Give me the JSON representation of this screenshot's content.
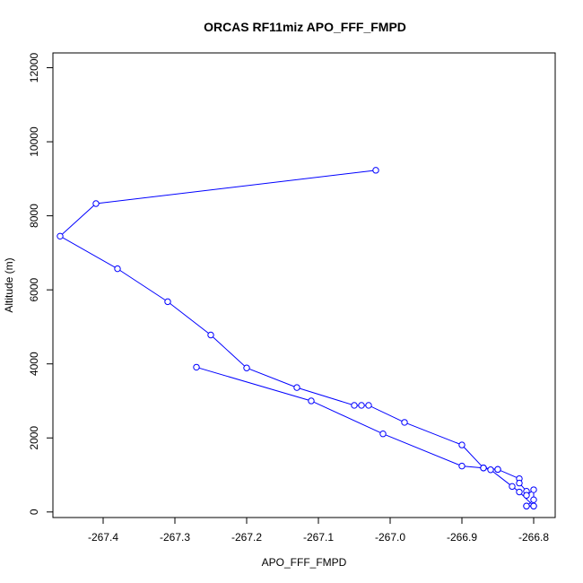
{
  "chart_data": {
    "type": "line",
    "title": "ORCAS RF11miz APO_FFF_FMPD",
    "xlabel": "APO_FFF_FMPD",
    "ylabel": "Altitude (m)",
    "xlim": [
      -267.47,
      -266.77
    ],
    "ylim": [
      -150,
      12400
    ],
    "xticks": [
      -267.4,
      -267.3,
      -267.2,
      -267.1,
      -267.0,
      -266.9,
      -266.8
    ],
    "xtick_labels": [
      "-267.4",
      "-267.3",
      "-267.2",
      "-267.1",
      "-267.0",
      "-266.9",
      "-266.8"
    ],
    "yticks": [
      0,
      2000,
      4000,
      6000,
      8000,
      10000,
      12000
    ],
    "ytick_labels": [
      "0",
      "2000",
      "4000",
      "6000",
      "8000",
      "10000",
      "12000"
    ],
    "grid": false,
    "legend": "none",
    "series": [
      {
        "color": "#0000ff",
        "marker": "open-circle",
        "x": [
          -267.02,
          -267.41,
          -267.46,
          -267.38,
          -267.31,
          -267.25,
          -267.2,
          -267.13,
          -267.05,
          -267.04,
          -267.03,
          -266.98,
          -266.9,
          -266.87,
          -266.87,
          -266.85,
          -266.85,
          -266.82,
          -266.82,
          -266.81,
          -266.81,
          -266.8,
          -266.8,
          -266.81,
          -266.81,
          -266.8,
          -266.8,
          -266.82,
          -266.83,
          -266.86,
          -266.87,
          -266.87,
          -266.9,
          -267.01,
          -267.11,
          -267.27
        ],
        "y": [
          9230,
          8330,
          7450,
          6570,
          5680,
          4780,
          3890,
          3360,
          2880,
          2880,
          2880,
          2420,
          1810,
          1190,
          1190,
          1150,
          1150,
          900,
          780,
          560,
          450,
          600,
          330,
          160,
          160,
          160,
          160,
          540,
          690,
          1140,
          1190,
          1190,
          1240,
          2110,
          3000,
          3910
        ]
      }
    ]
  }
}
